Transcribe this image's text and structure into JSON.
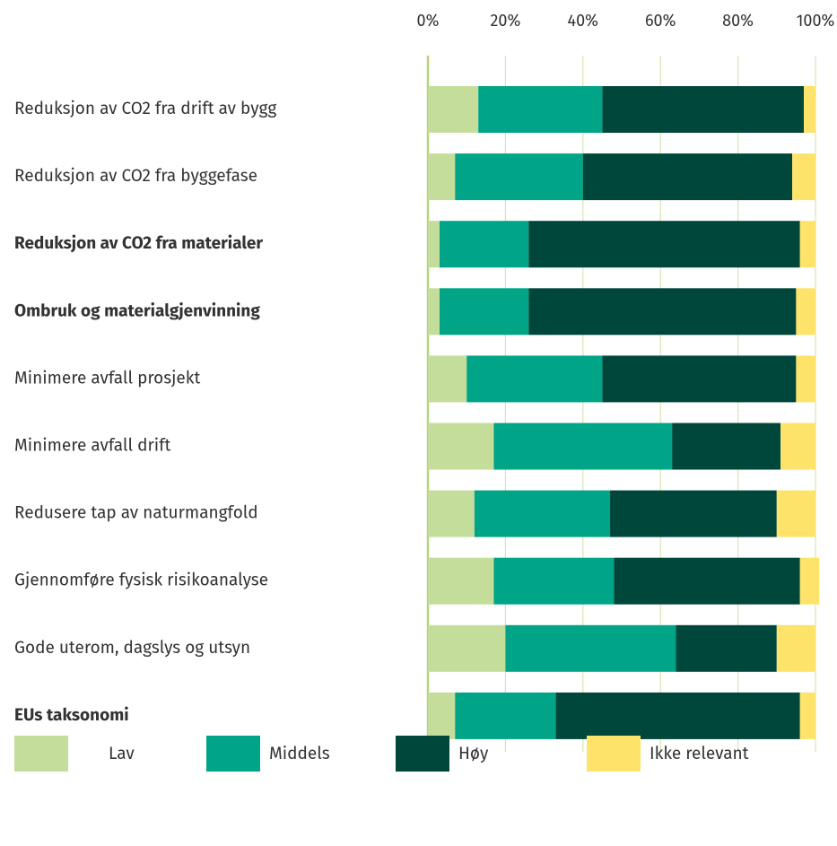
{
  "chart_data": {
    "type": "stacked_bar_horizontal",
    "categories": [
      "Reduksjon av CO2 fra drift av bygg",
      "Reduksjon av CO2 fra byggefase",
      "Reduksjon av CO2 fra materialer",
      "Ombruk og materialgjenvinning",
      "Minimere avfall prosjekt",
      "Minimere avfall drift",
      "Redusere tap av naturmangfold",
      "Gjennomføre fysisk risikoanalyse",
      "Gode uterom, dagslys og utsyn",
      "EUs taksonomi"
    ],
    "bold": [
      false,
      false,
      true,
      true,
      false,
      false,
      false,
      false,
      false,
      true
    ],
    "series": [
      {
        "name": "Lav",
        "color": "#c5dd9b",
        "values": [
          13,
          7,
          3,
          3,
          10,
          17,
          12,
          17,
          20,
          7
        ]
      },
      {
        "name": "Middels",
        "color": "#00a587",
        "values": [
          32,
          33,
          23,
          23,
          35,
          46,
          35,
          31,
          44,
          26
        ]
      },
      {
        "name": "Høy",
        "color": "#00473b",
        "values": [
          52,
          54,
          70,
          69,
          50,
          28,
          43,
          48,
          26,
          63
        ]
      },
      {
        "name": "Ikke relevant",
        "color": "#fde36a",
        "values": [
          3,
          6,
          4,
          5,
          5,
          9,
          10,
          5,
          10,
          4
        ]
      }
    ],
    "xlim": [
      0,
      100
    ],
    "xticks": [
      {
        "value": 0,
        "label": "0%"
      },
      {
        "value": 20,
        "label": "20%"
      },
      {
        "value": 40,
        "label": "40%"
      },
      {
        "value": 60,
        "label": "60%"
      },
      {
        "value": 80,
        "label": "80%"
      },
      {
        "value": 100,
        "label": "100%"
      }
    ],
    "grid": true,
    "legend": "bottom"
  }
}
